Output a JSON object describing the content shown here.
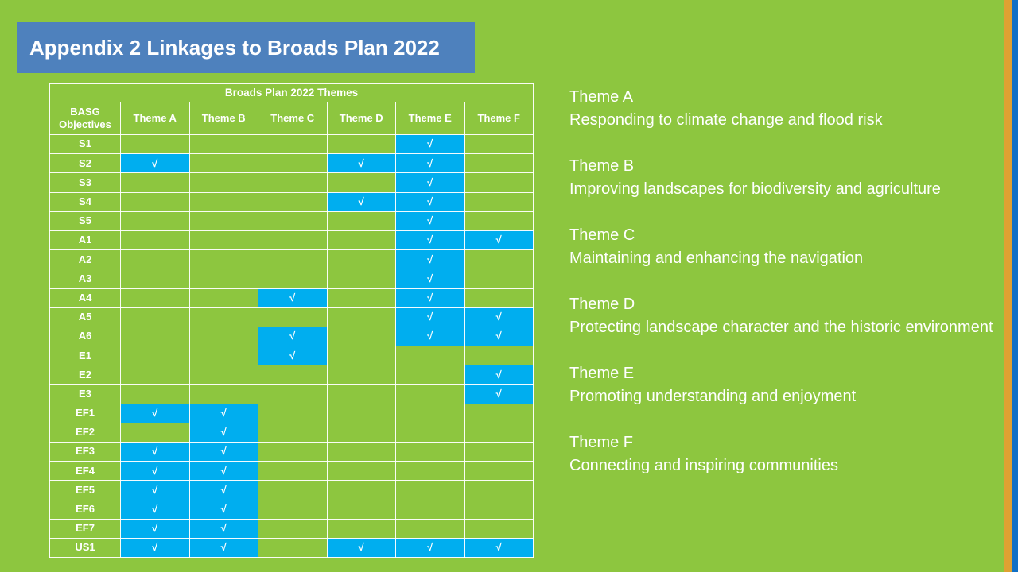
{
  "title": "Appendix 2 Linkages to Broads Plan 2022",
  "table": {
    "spanning_header": "Broads Plan 2022 Themes",
    "row_header": "BASG Objectives",
    "columns": [
      "Theme A",
      "Theme B",
      "Theme C",
      "Theme D",
      "Theme E",
      "Theme F"
    ],
    "column_keys": [
      "A",
      "B",
      "C",
      "D",
      "E",
      "F"
    ],
    "check_symbol": "√",
    "rows": [
      {
        "objective": "S1",
        "checks": [
          "E"
        ]
      },
      {
        "objective": "S2",
        "checks": [
          "A",
          "D",
          "E"
        ]
      },
      {
        "objective": "S3",
        "checks": [
          "E"
        ]
      },
      {
        "objective": "S4",
        "checks": [
          "D",
          "E"
        ]
      },
      {
        "objective": "S5",
        "checks": [
          "E"
        ]
      },
      {
        "objective": "A1",
        "checks": [
          "E",
          "F"
        ]
      },
      {
        "objective": "A2",
        "checks": [
          "E"
        ]
      },
      {
        "objective": "A3",
        "checks": [
          "E"
        ]
      },
      {
        "objective": "A4",
        "checks": [
          "C",
          "E"
        ]
      },
      {
        "objective": "A5",
        "checks": [
          "E",
          "F"
        ]
      },
      {
        "objective": "A6",
        "checks": [
          "C",
          "E",
          "F"
        ]
      },
      {
        "objective": "E1",
        "checks": [
          "C"
        ]
      },
      {
        "objective": "E2",
        "checks": [
          "F"
        ]
      },
      {
        "objective": "E3",
        "checks": [
          "F"
        ]
      },
      {
        "objective": "EF1",
        "checks": [
          "A",
          "B"
        ]
      },
      {
        "objective": "EF2",
        "checks": [
          "B"
        ]
      },
      {
        "objective": "EF3",
        "checks": [
          "A",
          "B"
        ]
      },
      {
        "objective": "EF4",
        "checks": [
          "A",
          "B"
        ]
      },
      {
        "objective": "EF5",
        "checks": [
          "A",
          "B"
        ]
      },
      {
        "objective": "EF6",
        "checks": [
          "A",
          "B"
        ]
      },
      {
        "objective": "EF7",
        "checks": [
          "A",
          "B"
        ]
      },
      {
        "objective": "US1",
        "checks": [
          "A",
          "B",
          "D",
          "E",
          "F"
        ]
      }
    ]
  },
  "legend": [
    {
      "name": "Theme A",
      "description": "Responding to climate change and flood risk"
    },
    {
      "name": "Theme B",
      "description": "Improving landscapes for biodiversity and agriculture"
    },
    {
      "name": "Theme C",
      "description": "Maintaining and enhancing the navigation"
    },
    {
      "name": "Theme D",
      "description": "Protecting landscape character and the historic environment"
    },
    {
      "name": "Theme E",
      "description": "Promoting understanding and enjoyment"
    },
    {
      "name": "Theme F",
      "description": "Connecting and inspiring communities"
    }
  ],
  "colors": {
    "background_green": "#8DC63F",
    "title_box_blue": "#4E81BD",
    "check_cell_blue": "#00AEEF",
    "stripe_orange": "#DFA132",
    "stripe_blue": "#1170C5",
    "gridline": "#FFFFFF",
    "text": "#FFFFFF"
  }
}
